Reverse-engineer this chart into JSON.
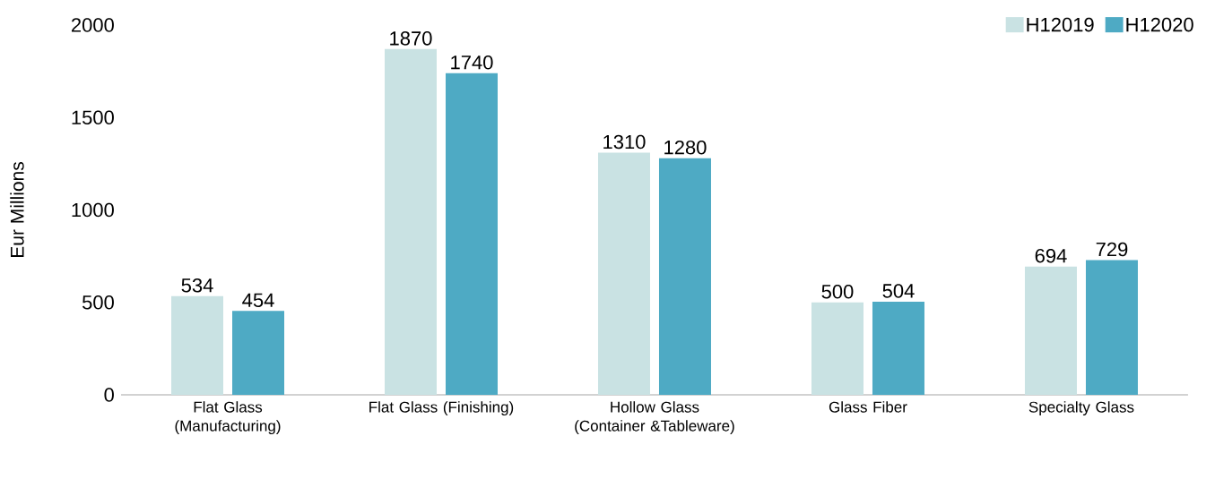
{
  "chart_data": {
    "type": "bar",
    "ylabel": "Eur Millions",
    "categories": [
      "Flat Glass (Manufacturing)",
      "Flat Glass (Finishing)",
      "Hollow Glass (Container &Tableware)",
      "Glass Fiber",
      "Specialty Glass"
    ],
    "series": [
      {
        "name": "H12019",
        "color": "#c9e2e3",
        "values": [
          534,
          1870,
          1310,
          500,
          694
        ]
      },
      {
        "name": "H12020",
        "color": "#4eaac4",
        "values": [
          454,
          1740,
          1280,
          504,
          729
        ]
      }
    ],
    "ylim": [
      0,
      2000
    ],
    "yticks": [
      0,
      500,
      1000,
      1500,
      2000
    ],
    "grid": false,
    "legend": "top right",
    "data_labels": true
  }
}
